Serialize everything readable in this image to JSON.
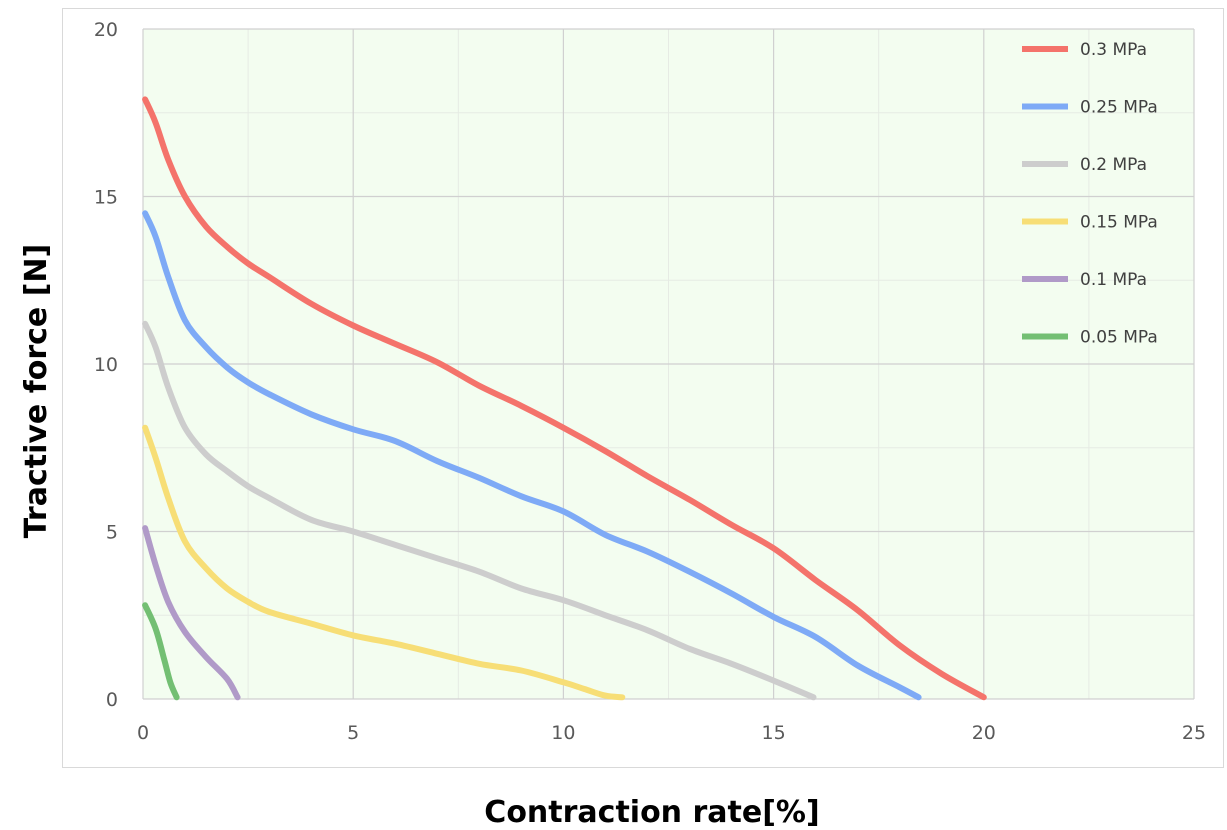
{
  "chart_data": {
    "type": "line",
    "title": "",
    "xlabel": "Contraction rate[%]",
    "ylabel": "Tractive force [N]",
    "xlim": [
      0,
      25
    ],
    "ylim": [
      0,
      20
    ],
    "x_ticks": [
      "0",
      "5",
      "10",
      "15",
      "20",
      "25"
    ],
    "y_ticks": [
      "0",
      "5",
      "10",
      "15",
      "20"
    ],
    "grid": true,
    "plot_background": "#f3fdf0",
    "legend_position": "top-right",
    "series": [
      {
        "name": "0.3  MPa",
        "color": "#f4736b",
        "points": [
          [
            0.05,
            17.9
          ],
          [
            0.3,
            17.2
          ],
          [
            0.6,
            16.1
          ],
          [
            1,
            15
          ],
          [
            1.5,
            14.1
          ],
          [
            2,
            13.5
          ],
          [
            2.5,
            13
          ],
          [
            3,
            12.6
          ],
          [
            4,
            11.8
          ],
          [
            5,
            11.15
          ],
          [
            6,
            10.6
          ],
          [
            7,
            10.05
          ],
          [
            8,
            9.35
          ],
          [
            9,
            8.75
          ],
          [
            10,
            8.1
          ],
          [
            11,
            7.4
          ],
          [
            12,
            6.65
          ],
          [
            13,
            5.95
          ],
          [
            14,
            5.2
          ],
          [
            15,
            4.5
          ],
          [
            16,
            3.55
          ],
          [
            17,
            2.65
          ],
          [
            18,
            1.6
          ],
          [
            19,
            0.75
          ],
          [
            20,
            0.05
          ]
        ]
      },
      {
        "name": "0.25 MPa",
        "color": "#7eaaf6",
        "points": [
          [
            0.05,
            14.5
          ],
          [
            0.3,
            13.8
          ],
          [
            0.6,
            12.6
          ],
          [
            1,
            11.3
          ],
          [
            1.5,
            10.5
          ],
          [
            2,
            9.9
          ],
          [
            2.5,
            9.45
          ],
          [
            3,
            9.1
          ],
          [
            4,
            8.5
          ],
          [
            5,
            8.05
          ],
          [
            6,
            7.7
          ],
          [
            7,
            7.1
          ],
          [
            8,
            6.6
          ],
          [
            9,
            6.05
          ],
          [
            10,
            5.6
          ],
          [
            11,
            4.9
          ],
          [
            12,
            4.4
          ],
          [
            13,
            3.8
          ],
          [
            14,
            3.15
          ],
          [
            15,
            2.45
          ],
          [
            16,
            1.85
          ],
          [
            17,
            1
          ],
          [
            18,
            0.35
          ],
          [
            18.45,
            0.05
          ]
        ]
      },
      {
        "name": "0.2  MPa",
        "color": "#cdcdcd",
        "points": [
          [
            0.05,
            11.2
          ],
          [
            0.3,
            10.5
          ],
          [
            0.6,
            9.3
          ],
          [
            1,
            8.1
          ],
          [
            1.5,
            7.3
          ],
          [
            2,
            6.8
          ],
          [
            2.5,
            6.35
          ],
          [
            3,
            6
          ],
          [
            4,
            5.35
          ],
          [
            5,
            5
          ],
          [
            6,
            4.6
          ],
          [
            7,
            4.2
          ],
          [
            8,
            3.8
          ],
          [
            9,
            3.3
          ],
          [
            10,
            2.95
          ],
          [
            11,
            2.5
          ],
          [
            12,
            2.05
          ],
          [
            13,
            1.5
          ],
          [
            14,
            1.05
          ],
          [
            15,
            0.55
          ],
          [
            15.95,
            0.05
          ]
        ]
      },
      {
        "name": "0.15 MPa",
        "color": "#f7de76",
        "points": [
          [
            0.05,
            8.1
          ],
          [
            0.3,
            7.2
          ],
          [
            0.6,
            6
          ],
          [
            1,
            4.7
          ],
          [
            1.5,
            3.9
          ],
          [
            2,
            3.3
          ],
          [
            2.5,
            2.9
          ],
          [
            3,
            2.6
          ],
          [
            4,
            2.25
          ],
          [
            5,
            1.9
          ],
          [
            6,
            1.65
          ],
          [
            7,
            1.35
          ],
          [
            8,
            1.05
          ],
          [
            9,
            0.85
          ],
          [
            10,
            0.5
          ],
          [
            10.5,
            0.3
          ],
          [
            11,
            0.1
          ],
          [
            11.4,
            0.05
          ]
        ]
      },
      {
        "name": "0.1  MPa",
        "color": "#b09ac8",
        "points": [
          [
            0.05,
            5.1
          ],
          [
            0.3,
            4
          ],
          [
            0.6,
            2.9
          ],
          [
            1,
            2
          ],
          [
            1.5,
            1.25
          ],
          [
            2,
            0.6
          ],
          [
            2.25,
            0.05
          ]
        ]
      },
      {
        "name": "0.05 MPa",
        "color": "#73bf73",
        "points": [
          [
            0.05,
            2.8
          ],
          [
            0.3,
            2.1
          ],
          [
            0.5,
            1.2
          ],
          [
            0.65,
            0.5
          ],
          [
            0.8,
            0.05
          ]
        ]
      }
    ]
  }
}
